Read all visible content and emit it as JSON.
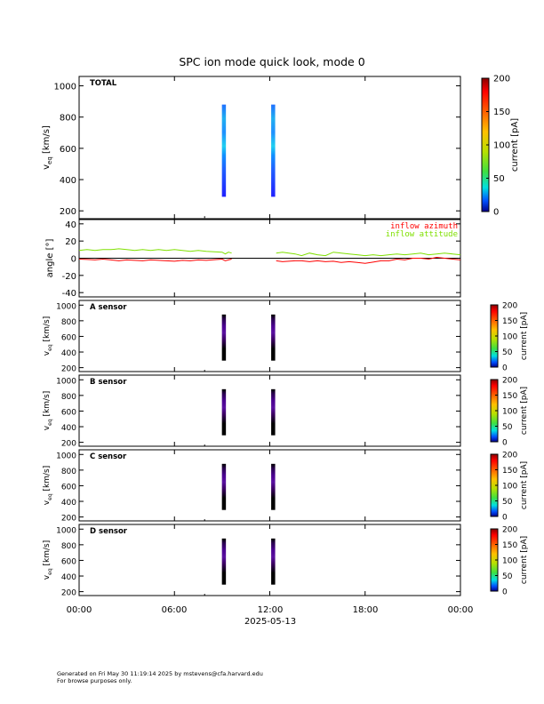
{
  "figure": {
    "title": "SPC ion mode quick look, mode 0",
    "date_label": "2025-05-13",
    "x_ticks": [
      "00:00",
      "06:00",
      "12:00",
      "18:00",
      "00:00"
    ],
    "footer": {
      "line1": "Generated on Fri May 30 11:19:14 2025 by mstevens@cfa.harvard.edu",
      "line2": "For browse purposes only."
    }
  },
  "chart_data": [
    {
      "type": "heatmap",
      "panel": "TOTAL",
      "ylabel_main": "v",
      "ylabel_sub": "eq",
      "ylabel_unit": "[km/s]",
      "ylim": [
        150,
        1060
      ],
      "y_ticks": [
        200,
        400,
        600,
        800,
        1000
      ],
      "colorbar": {
        "label": "current [pA]",
        "range": [
          0,
          200
        ],
        "ticks": [
          0,
          50,
          100,
          150,
          200
        ]
      },
      "data_columns": [
        {
          "time_hours": 9.1,
          "v_range": [
            290,
            880
          ]
        },
        {
          "time_hours": 12.2,
          "v_range": [
            290,
            880
          ]
        }
      ]
    },
    {
      "type": "line",
      "panel": "angle",
      "ylabel": "angle [°]",
      "ylim": [
        -45,
        45
      ],
      "y_ticks": [
        -40,
        -20,
        0,
        20,
        40
      ],
      "legend_placement": "top-right",
      "series": [
        {
          "name": "inflow azimuth",
          "color": "#ff0000",
          "x": [
            0,
            0.5,
            1,
            1.5,
            2,
            2.5,
            3,
            3.5,
            4,
            4.5,
            5,
            5.5,
            6,
            6.5,
            7,
            7.5,
            8,
            9.0,
            9.2,
            9.4,
            9.6,
            12.4,
            12.8,
            13.2,
            13.6,
            14,
            14.5,
            15,
            15.5,
            16,
            16.5,
            17,
            17.5,
            18,
            18.5,
            19,
            19.5,
            20,
            20.5,
            21,
            21.5,
            22,
            22.5,
            23,
            23.5,
            24
          ],
          "y": [
            -1,
            -1.5,
            -2,
            -1,
            -2,
            -3,
            -2,
            -2.5,
            -3,
            -2,
            -2.5,
            -3,
            -3.5,
            -2.5,
            -3,
            -2,
            -2.5,
            -1,
            -3,
            -2,
            -1,
            -3,
            -4,
            -3.5,
            -3,
            -3,
            -4,
            -3,
            -4,
            -3.5,
            -5,
            -4,
            -5,
            -6,
            -4.5,
            -3,
            -3,
            -1,
            -2,
            0,
            0,
            -1,
            1,
            0,
            -1,
            -2
          ]
        },
        {
          "name": "inflow attitude",
          "color": "#7fe000",
          "x": [
            0,
            0.5,
            1,
            1.5,
            2,
            2.5,
            3,
            3.5,
            4,
            4.5,
            5,
            5.5,
            6,
            6.5,
            7,
            7.5,
            8,
            9.0,
            9.2,
            9.4,
            9.6,
            12.4,
            12.8,
            13.2,
            13.6,
            14,
            14.5,
            15,
            15.5,
            16,
            16.5,
            17,
            17.5,
            18,
            18.5,
            19,
            19.5,
            20,
            20.5,
            21,
            21.5,
            22,
            22.5,
            23,
            23.5,
            24
          ],
          "y": [
            9,
            10,
            9,
            10,
            10,
            11,
            10,
            9,
            10,
            9,
            10,
            9,
            10,
            9,
            8,
            9,
            8,
            7,
            5,
            7,
            6,
            6,
            7,
            6,
            5,
            3,
            6,
            4,
            3,
            7,
            6,
            5,
            4,
            3,
            4,
            3,
            4,
            5,
            4,
            5,
            6,
            4,
            5,
            6,
            5,
            4
          ]
        }
      ]
    },
    {
      "type": "heatmap",
      "panel": "A sensor",
      "ylabel_main": "v",
      "ylabel_sub": "eq",
      "ylabel_unit": "[km/s]",
      "ylim": [
        150,
        1060
      ],
      "y_ticks": [
        200,
        400,
        600,
        800,
        1000
      ],
      "colorbar": {
        "label": "current [pA]",
        "range": [
          0,
          200
        ],
        "ticks": [
          0,
          50,
          100,
          150,
          200
        ]
      },
      "data_columns": [
        {
          "time_hours": 9.1,
          "v_range": [
            290,
            880
          ]
        },
        {
          "time_hours": 12.2,
          "v_range": [
            290,
            880
          ]
        }
      ]
    },
    {
      "type": "heatmap",
      "panel": "B sensor",
      "ylabel_main": "v",
      "ylabel_sub": "eq",
      "ylabel_unit": "[km/s]",
      "ylim": [
        150,
        1060
      ],
      "y_ticks": [
        200,
        400,
        600,
        800,
        1000
      ],
      "colorbar": {
        "label": "current [pA]",
        "range": [
          0,
          200
        ],
        "ticks": [
          0,
          50,
          100,
          150,
          200
        ]
      },
      "data_columns": [
        {
          "time_hours": 9.1,
          "v_range": [
            290,
            880
          ]
        },
        {
          "time_hours": 12.2,
          "v_range": [
            290,
            880
          ]
        }
      ]
    },
    {
      "type": "heatmap",
      "panel": "C sensor",
      "ylabel_main": "v",
      "ylabel_sub": "eq",
      "ylabel_unit": "[km/s]",
      "ylim": [
        150,
        1060
      ],
      "y_ticks": [
        200,
        400,
        600,
        800,
        1000
      ],
      "colorbar": {
        "label": "current [pA]",
        "range": [
          0,
          200
        ],
        "ticks": [
          0,
          50,
          100,
          150,
          200
        ]
      },
      "data_columns": [
        {
          "time_hours": 9.1,
          "v_range": [
            290,
            880
          ]
        },
        {
          "time_hours": 12.2,
          "v_range": [
            290,
            880
          ]
        }
      ]
    },
    {
      "type": "heatmap",
      "panel": "D sensor",
      "ylabel_main": "v",
      "ylabel_sub": "eq",
      "ylabel_unit": "[km/s]",
      "ylim": [
        150,
        1060
      ],
      "y_ticks": [
        200,
        400,
        600,
        800,
        1000
      ],
      "colorbar": {
        "label": "current [pA]",
        "range": [
          0,
          200
        ],
        "ticks": [
          0,
          50,
          100,
          150,
          200
        ]
      },
      "data_columns": [
        {
          "time_hours": 9.1,
          "v_range": [
            290,
            880
          ]
        },
        {
          "time_hours": 12.2,
          "v_range": [
            290,
            880
          ]
        }
      ]
    }
  ]
}
